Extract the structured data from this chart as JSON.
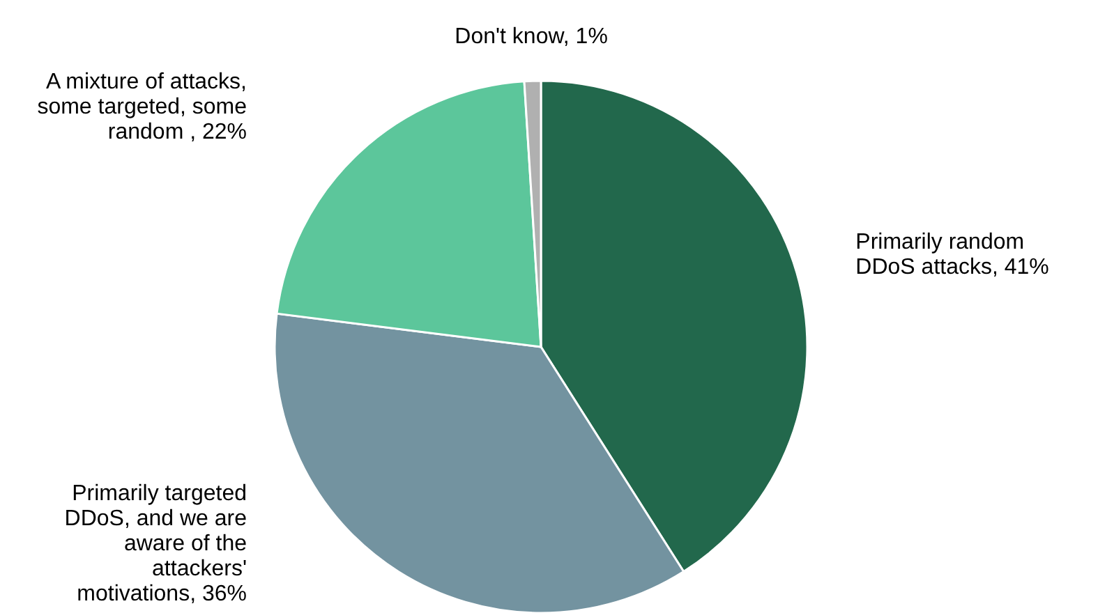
{
  "chart_data": {
    "type": "pie",
    "categories": [
      "Primarily random DDoS attacks, 41%",
      "Primarily targeted DDoS, and we are aware of the attackers' motivations, 36%",
      "A mixture of attacks, some targeted, some random , 22%",
      "Don't know, 1%"
    ],
    "values": [
      41,
      36,
      22,
      1
    ],
    "colors": [
      "#22684c",
      "#7393a0",
      "#5cc69b",
      "#b0b0b0"
    ]
  }
}
